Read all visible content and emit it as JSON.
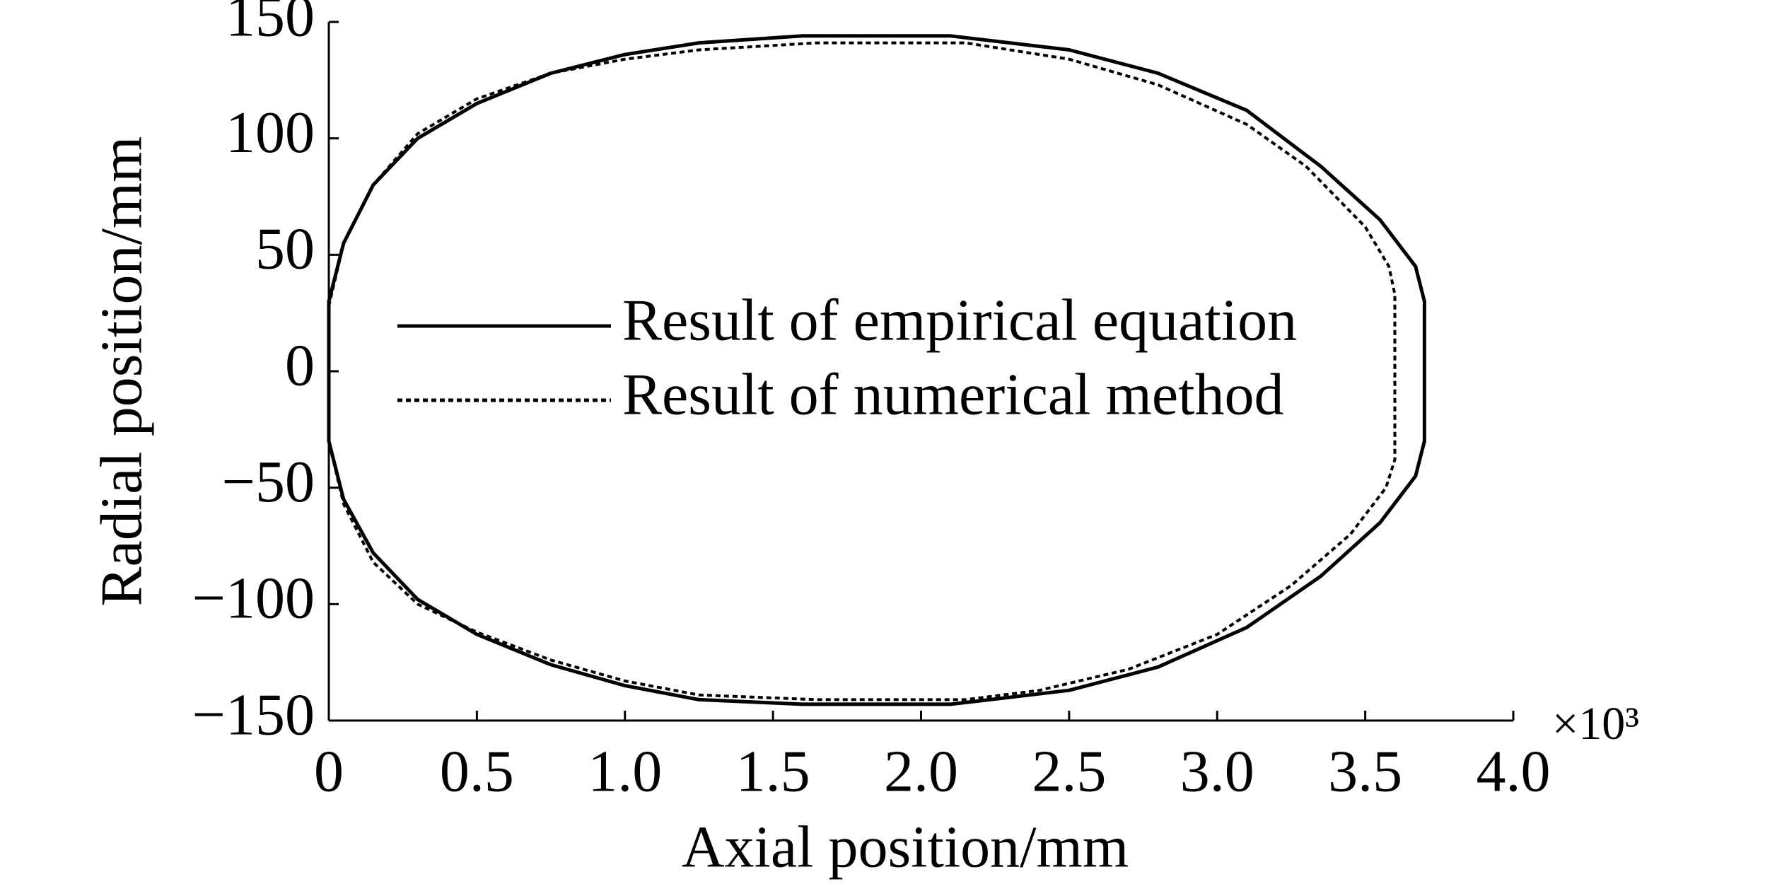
{
  "chart_data": {
    "type": "line",
    "xlabel": "Axial position/mm",
    "ylabel": "Radial position/mm",
    "x_multiplier": "×10³",
    "xlim": [
      0,
      4.0
    ],
    "xticks": [
      0,
      0.5,
      {
        "value": 1,
        "label": "1.0"
      },
      1.5,
      {
        "value": 2,
        "label": "2.0"
      },
      2.5,
      {
        "value": 3,
        "label": "3.0"
      },
      3.5,
      {
        "value": 4,
        "label": "4.0"
      }
    ],
    "ylim": [
      -150,
      150
    ],
    "yticks": [
      {
        "value": -150,
        "label": "−150"
      },
      {
        "value": -100,
        "label": "−100"
      },
      {
        "value": -50,
        "label": "−50"
      },
      0,
      50,
      100,
      150
    ],
    "grid": false,
    "series": [
      {
        "name": "Result of empirical equation",
        "color": "#000000",
        "line_style": "solid",
        "x": [
          0,
          0.05,
          0.15,
          0.3,
          0.5,
          0.75,
          1.0,
          1.25,
          1.6,
          2.1,
          2.5,
          2.8,
          3.1,
          3.35,
          3.55,
          3.67,
          3.7,
          3.7,
          3.67,
          3.55,
          3.35,
          3.1,
          2.8,
          2.5,
          2.1,
          1.6,
          1.25,
          1.0,
          0.75,
          0.5,
          0.3,
          0.15,
          0.05,
          0
        ],
        "values": [
          30,
          55,
          80,
          100,
          115,
          128,
          136,
          141,
          144,
          144,
          138,
          128,
          112,
          88,
          65,
          45,
          30,
          -30,
          -45,
          -65,
          -88,
          -110,
          -127,
          -137,
          -143,
          -143,
          -141,
          -135,
          -126,
          -113,
          -98,
          -78,
          -55,
          -30
        ]
      },
      {
        "name": "Result of numerical method",
        "color": "#000000",
        "line_style": "dotted",
        "x": [
          0,
          0.05,
          0.15,
          0.3,
          0.5,
          0.75,
          1.0,
          1.25,
          1.65,
          2.15,
          2.5,
          2.8,
          3.1,
          3.3,
          3.5,
          3.58,
          3.6,
          3.6,
          3.57,
          3.45,
          3.25,
          3.0,
          2.7,
          2.4,
          2.15,
          1.65,
          1.25,
          1.0,
          0.75,
          0.5,
          0.3,
          0.15,
          0.05,
          0
        ],
        "values": [
          28,
          55,
          80,
          102,
          117,
          128,
          134,
          138,
          141,
          141,
          134,
          123,
          106,
          88,
          62,
          45,
          33,
          -38,
          -50,
          -70,
          -92,
          -113,
          -128,
          -137,
          -141,
          -141,
          -139,
          -133,
          -124,
          -112,
          -100,
          -82,
          -57,
          -30
        ]
      }
    ]
  }
}
